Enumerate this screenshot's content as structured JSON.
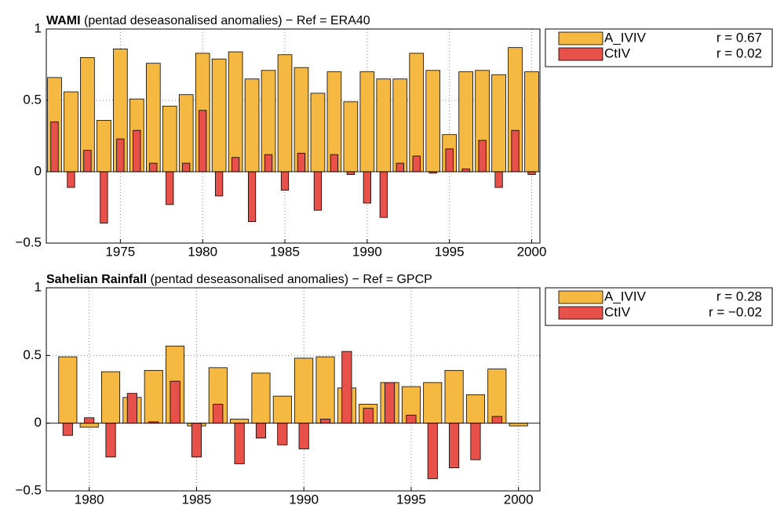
{
  "chart_data": [
    {
      "type": "bar",
      "title_bold": "WAMI",
      "title": "(pentad deseasonalised anomalies) − Ref = ERA40",
      "x": [
        1971,
        1972,
        1973,
        1974,
        1975,
        1976,
        1977,
        1978,
        1979,
        1980,
        1981,
        1982,
        1983,
        1984,
        1985,
        1986,
        1987,
        1988,
        1989,
        1990,
        1991,
        1992,
        1993,
        1994,
        1995,
        1996,
        1997,
        1998,
        1999,
        2000
      ],
      "series": [
        {
          "name": "A_IVIV",
          "note": "r = 0.67",
          "color": "#f5b942",
          "values": [
            0.66,
            0.56,
            0.8,
            0.36,
            0.86,
            0.51,
            0.76,
            0.46,
            0.54,
            0.83,
            0.79,
            0.84,
            0.65,
            0.71,
            0.82,
            0.73,
            0.55,
            0.7,
            0.49,
            0.7,
            0.65,
            0.65,
            0.83,
            0.71,
            0.26,
            0.7,
            0.71,
            0.68,
            0.87,
            0.7
          ]
        },
        {
          "name": "CtIV",
          "note": "r = 0.02",
          "color": "#e8504a",
          "values": [
            0.35,
            -0.11,
            0.15,
            -0.36,
            0.23,
            0.29,
            0.06,
            -0.23,
            0.06,
            0.43,
            -0.17,
            0.1,
            -0.35,
            0.12,
            -0.13,
            0.13,
            -0.27,
            0.12,
            -0.02,
            -0.22,
            -0.32,
            0.06,
            0.11,
            -0.01,
            0.16,
            0.02,
            0.22,
            -0.11,
            0.29,
            -0.02
          ]
        }
      ],
      "xlim": [
        1970.5,
        2000.5
      ],
      "xticks": [
        1975,
        1980,
        1985,
        1990,
        1995,
        2000
      ],
      "ylim": [
        -0.5,
        1
      ],
      "yticks": [
        {
          "value": -0.5,
          "label": "−0.5"
        },
        0,
        0.5,
        1
      ],
      "grid": true
    },
    {
      "type": "bar",
      "title_bold": "Sahelian Rainfall",
      "title": "(pentad deseasonalised anomalies) − Ref = GPCP",
      "x": [
        1979,
        1980,
        1981,
        1982,
        1983,
        1984,
        1985,
        1986,
        1987,
        1988,
        1989,
        1990,
        1991,
        1992,
        1993,
        1994,
        1995,
        1996,
        1997,
        1998,
        1999,
        2000
      ],
      "series": [
        {
          "name": "A_IVIV",
          "note": "r = 0.28",
          "color": "#f5b942",
          "values": [
            0.49,
            -0.03,
            0.38,
            0.19,
            0.39,
            0.57,
            -0.02,
            0.41,
            0.03,
            0.37,
            0.2,
            0.48,
            0.49,
            0.26,
            0.14,
            0.3,
            0.27,
            0.3,
            0.39,
            0.21,
            0.4,
            -0.02
          ]
        },
        {
          "name": "CtIV",
          "note": "r = −0.02",
          "color": "#e8504a",
          "values": [
            -0.09,
            0.04,
            -0.25,
            0.22,
            0.01,
            0.31,
            -0.25,
            0.14,
            -0.3,
            -0.11,
            -0.16,
            -0.19,
            0.03,
            0.53,
            0.11,
            0.3,
            0.06,
            -0.41,
            -0.33,
            -0.27,
            0.05,
            null
          ]
        }
      ],
      "xlim": [
        1978,
        2001
      ],
      "xticks": [
        1980,
        1985,
        1990,
        1995,
        2000
      ],
      "ylim": [
        -0.5,
        1
      ],
      "yticks": [
        {
          "value": -0.5,
          "label": "−0.5"
        },
        0,
        0.5,
        1
      ],
      "grid": true
    }
  ]
}
